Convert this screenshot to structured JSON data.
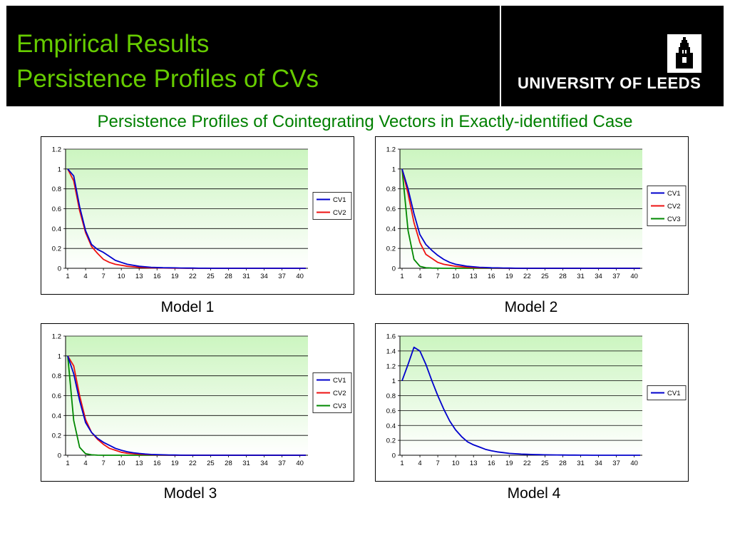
{
  "header": {
    "title_line1": "Empirical Results",
    "title_line2": "Persistence  Profiles of CVs",
    "logo_text": "UNIVERSITY OF LEEDS",
    "logo_icon": "parkinson-tower-icon"
  },
  "subtitle": "Persistence Profiles of Cointegrating Vectors in Exactly-identified Case",
  "colors": {
    "title": "#66cc00",
    "subtitle": "#008000",
    "CV1": "#0000cc",
    "CV2": "#ee1111",
    "CV3": "#008800",
    "plot_top": "#ccf5c0"
  },
  "chart_data": [
    {
      "type": "line",
      "label": "Model 1",
      "ylim": [
        0,
        1.2
      ],
      "yticks": [
        "0",
        "0.2",
        "0.4",
        "0.6",
        "0.8",
        "1",
        "1.2"
      ],
      "xticks": [
        "1",
        "4",
        "7",
        "10",
        "13",
        "16",
        "19",
        "22",
        "25",
        "28",
        "31",
        "34",
        "37",
        "40"
      ],
      "x_count": 41,
      "legend": "right",
      "series": [
        {
          "name": "CV1",
          "values": [
            1,
            0.93,
            0.62,
            0.38,
            0.24,
            0.19,
            0.16,
            0.12,
            0.08,
            0.06,
            0.04,
            0.03,
            0.02,
            0.015,
            0.01,
            0.008,
            0.006,
            0.005,
            0.004,
            0.003,
            0.002,
            0.002,
            0.001,
            0.001,
            0,
            0,
            0,
            0,
            0,
            0,
            0,
            0,
            0,
            0,
            0,
            0,
            0,
            0,
            0,
            0,
            0
          ]
        },
        {
          "name": "CV2",
          "values": [
            1,
            0.88,
            0.58,
            0.36,
            0.22,
            0.15,
            0.09,
            0.06,
            0.04,
            0.03,
            0.02,
            0.015,
            0.01,
            0.008,
            0.005,
            0.004,
            0.003,
            0.002,
            0.001,
            0.001,
            0,
            0,
            0,
            0,
            0,
            0,
            0,
            0,
            0,
            0,
            0,
            0,
            0,
            0,
            0,
            0,
            0,
            0,
            0,
            0,
            0
          ]
        }
      ]
    },
    {
      "type": "line",
      "label": "Model 2",
      "ylim": [
        0,
        1.2
      ],
      "yticks": [
        "0",
        "0.2",
        "0.4",
        "0.6",
        "0.8",
        "1",
        "1.2"
      ],
      "xticks": [
        "1",
        "4",
        "7",
        "10",
        "13",
        "16",
        "19",
        "22",
        "25",
        "28",
        "31",
        "34",
        "37",
        "40"
      ],
      "x_count": 41,
      "legend": "right",
      "series": [
        {
          "name": "CV1",
          "values": [
            1,
            0.8,
            0.55,
            0.34,
            0.24,
            0.18,
            0.13,
            0.09,
            0.06,
            0.04,
            0.03,
            0.02,
            0.015,
            0.01,
            0.008,
            0.005,
            0.004,
            0.003,
            0.002,
            0.001,
            0,
            0,
            0,
            0,
            0,
            0,
            0,
            0,
            0,
            0,
            0,
            0,
            0,
            0,
            0,
            0,
            0,
            0,
            0,
            0,
            0
          ]
        },
        {
          "name": "CV2",
          "values": [
            1,
            0.75,
            0.46,
            0.26,
            0.14,
            0.1,
            0.06,
            0.04,
            0.03,
            0.02,
            0.015,
            0.01,
            0.008,
            0.005,
            0.004,
            0.003,
            0.002,
            0.001,
            0,
            0,
            0,
            0,
            0,
            0,
            0,
            0,
            0,
            0,
            0,
            0,
            0,
            0,
            0,
            0,
            0,
            0,
            0,
            0,
            0,
            0,
            0
          ]
        },
        {
          "name": "CV3",
          "values": [
            1,
            0.38,
            0.09,
            0.02,
            0.005,
            0.002,
            0.001,
            0,
            0,
            0,
            0,
            0,
            0,
            0,
            0,
            0,
            0,
            0,
            0,
            0,
            0,
            0,
            0,
            0,
            0,
            0,
            0,
            0,
            0,
            0,
            0,
            0,
            0,
            0,
            0,
            0,
            0,
            0,
            0,
            0,
            0
          ]
        }
      ]
    },
    {
      "type": "line",
      "label": "Model 3",
      "ylim": [
        0,
        1.2
      ],
      "yticks": [
        "0",
        "0.2",
        "0.4",
        "0.6",
        "0.8",
        "1",
        "1.2"
      ],
      "xticks": [
        "1",
        "4",
        "7",
        "10",
        "13",
        "16",
        "19",
        "22",
        "25",
        "28",
        "31",
        "34",
        "37",
        "40"
      ],
      "x_count": 41,
      "legend": "right",
      "series": [
        {
          "name": "CV1",
          "values": [
            1,
            0.82,
            0.55,
            0.33,
            0.23,
            0.17,
            0.13,
            0.1,
            0.07,
            0.05,
            0.035,
            0.025,
            0.018,
            0.012,
            0.008,
            0.006,
            0.004,
            0.003,
            0.002,
            0.001,
            0,
            0,
            0,
            0,
            0,
            0,
            0,
            0,
            0,
            0,
            0,
            0,
            0,
            0,
            0,
            0,
            0,
            0,
            0,
            0,
            0
          ]
        },
        {
          "name": "CV2",
          "values": [
            1,
            0.9,
            0.6,
            0.36,
            0.23,
            0.16,
            0.11,
            0.07,
            0.05,
            0.03,
            0.02,
            0.015,
            0.01,
            0.007,
            0.005,
            0.003,
            0.002,
            0.001,
            0,
            0,
            0,
            0,
            0,
            0,
            0,
            0,
            0,
            0,
            0,
            0,
            0,
            0,
            0,
            0,
            0,
            0,
            0,
            0,
            0,
            0,
            0
          ]
        },
        {
          "name": "CV3",
          "values": [
            1,
            0.35,
            0.08,
            0.015,
            0.004,
            0.001,
            0,
            0,
            0,
            0,
            0,
            0,
            0,
            0,
            0,
            0,
            0,
            0,
            0,
            0,
            0,
            0,
            0,
            0,
            0,
            0,
            0,
            0,
            0,
            0,
            0,
            0,
            0,
            0,
            0,
            0,
            0,
            0,
            0,
            0,
            0
          ]
        }
      ]
    },
    {
      "type": "line",
      "label": "Model 4",
      "ylim": [
        0,
        1.6
      ],
      "yticks": [
        "0",
        "0.2",
        "0.4",
        "0.6",
        "0.8",
        "1",
        "1.2",
        "1.4",
        "1.6"
      ],
      "xticks": [
        "1",
        "4",
        "7",
        "10",
        "13",
        "16",
        "19",
        "22",
        "25",
        "28",
        "31",
        "34",
        "37",
        "40"
      ],
      "x_count": 41,
      "legend": "right",
      "series": [
        {
          "name": "CV1",
          "values": [
            1,
            1.22,
            1.45,
            1.4,
            1.22,
            1.0,
            0.8,
            0.62,
            0.46,
            0.34,
            0.25,
            0.18,
            0.14,
            0.11,
            0.08,
            0.06,
            0.045,
            0.035,
            0.025,
            0.02,
            0.015,
            0.012,
            0.01,
            0.008,
            0.006,
            0.005,
            0.004,
            0.003,
            0.002,
            0.002,
            0.001,
            0.001,
            0,
            0,
            0,
            0,
            0,
            0,
            0,
            0,
            0
          ]
        }
      ]
    }
  ]
}
